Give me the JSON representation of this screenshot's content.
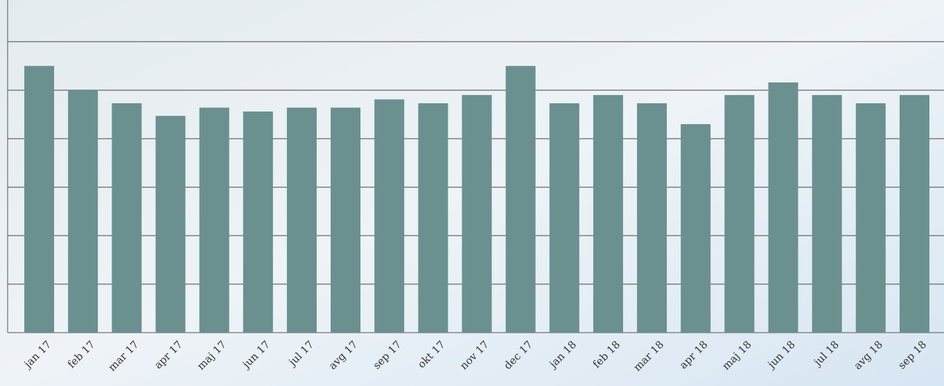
{
  "chart_data": {
    "type": "bar",
    "categories": [
      "jan 17",
      "feb 17",
      "mar 17",
      "apr 17",
      "maj 17",
      "jun 17",
      "jul 17",
      "avg 17",
      "sep 17",
      "okt 17",
      "nov 17",
      "dec 17",
      "jan 18",
      "feb 18",
      "mar 18",
      "apr 18",
      "maj 18",
      "jun 18",
      "jul 18",
      "avg 18",
      "sep 18"
    ],
    "values": [
      5.5,
      5.0,
      4.73,
      4.47,
      4.64,
      4.56,
      4.64,
      4.64,
      4.81,
      4.73,
      4.9,
      5.5,
      4.73,
      4.9,
      4.73,
      4.3,
      4.9,
      5.16,
      4.9,
      4.73,
      4.9
    ],
    "color": "#6b9090",
    "ylim": [
      0,
      6.86
    ],
    "yticks": [
      1,
      2,
      3,
      4,
      5,
      6
    ],
    "grid": true
  }
}
